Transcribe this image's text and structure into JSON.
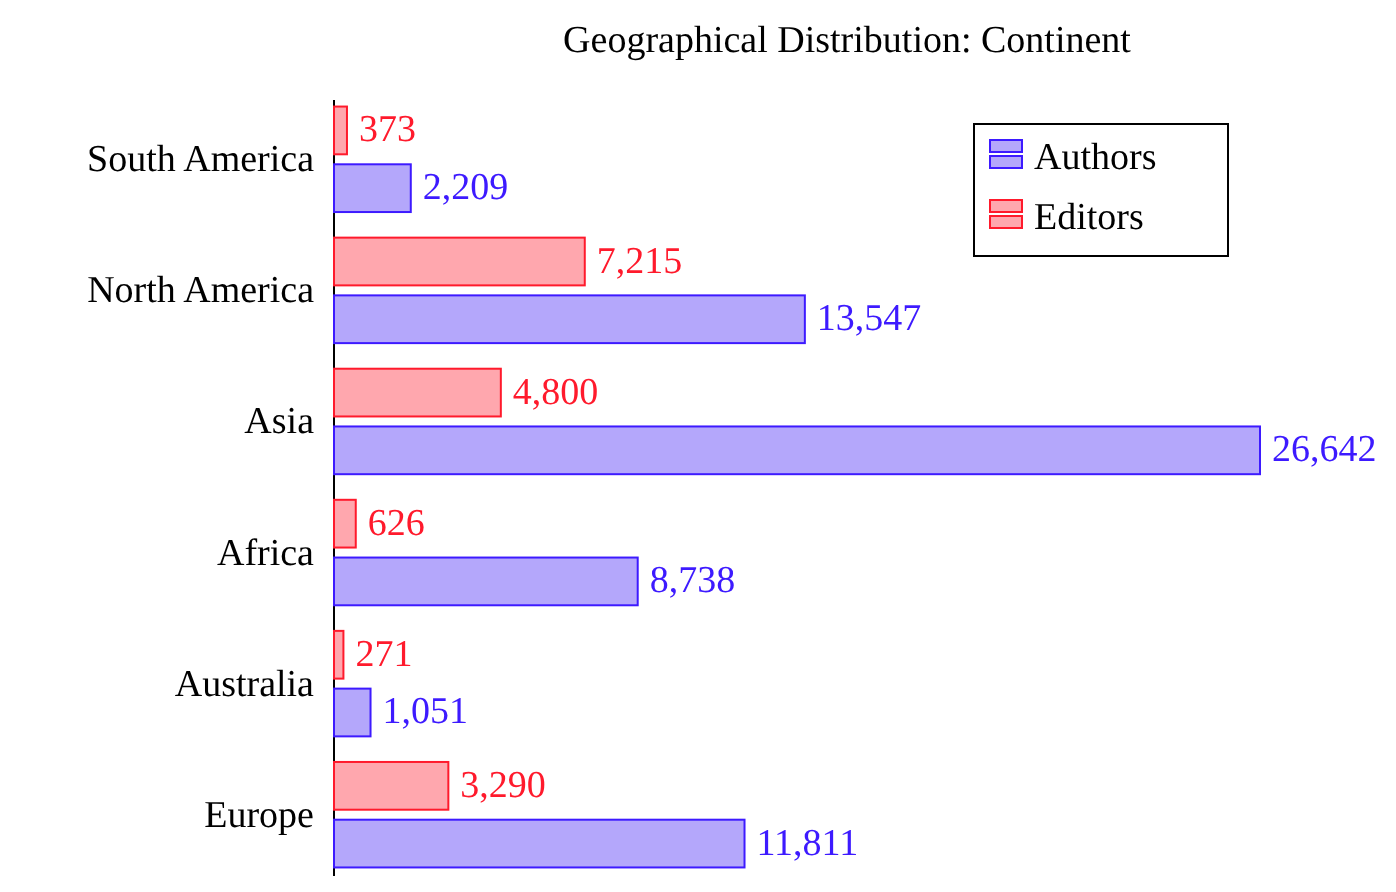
{
  "chart_data": {
    "type": "bar",
    "orientation": "horizontal",
    "title": "Geographical Distribution: Continent",
    "categories": [
      "South America",
      "North America",
      "Asia",
      "Africa",
      "Australia",
      "Europe"
    ],
    "series": [
      {
        "name": "Authors",
        "color": "#b4a7fb",
        "values": [
          2209,
          13547,
          26642,
          8738,
          1051,
          11811
        ],
        "value_labels": [
          "2,209",
          "13,547",
          "26,642",
          "8,738",
          "1,051",
          "11,811"
        ]
      },
      {
        "name": "Editors",
        "color": "#ffa7ae",
        "values": [
          373,
          7215,
          4800,
          626,
          271,
          3290
        ],
        "value_labels": [
          "373",
          "7,215",
          "4,800",
          "626",
          "271",
          "3,290"
        ]
      }
    ],
    "data_labels": true,
    "legend": "top right",
    "grid": false
  }
}
